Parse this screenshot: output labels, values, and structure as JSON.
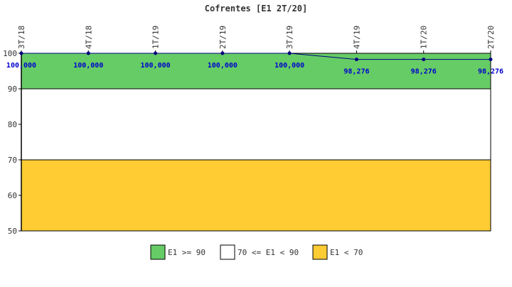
{
  "chart_data": {
    "type": "line",
    "title": "Cofrentes [E1 2T/20]",
    "xlabel": "",
    "ylabel": "",
    "categories": [
      "3T/18",
      "4T/18",
      "1T/19",
      "2T/19",
      "3T/19",
      "4T/19",
      "1T/20",
      "2T/20"
    ],
    "series": [
      {
        "values": [
          100,
          100,
          100,
          100,
          100,
          98.276,
          98.276,
          98.276
        ],
        "labels": [
          "100,000",
          "100,000",
          "100,000",
          "100,000",
          "100,000",
          "98,276",
          "98,276",
          "98,276"
        ],
        "color": "#000080"
      }
    ],
    "ylim": [
      50,
      100
    ],
    "yticks": [
      50,
      60,
      70,
      80,
      90,
      100
    ],
    "bands": [
      {
        "name": "E1 >= 90",
        "from": 90,
        "to": 100,
        "color": "#66cc66"
      },
      {
        "name": "70 <= E1 < 90",
        "from": 70,
        "to": 90,
        "color": "#ffffff"
      },
      {
        "name": "E1 < 70",
        "from": 50,
        "to": 70,
        "color": "#ffcc33"
      }
    ],
    "grid": false,
    "legend_position": "bottom"
  },
  "colors": {
    "axis": "#000000",
    "data_label": "#0000cc",
    "line": "#000080"
  }
}
